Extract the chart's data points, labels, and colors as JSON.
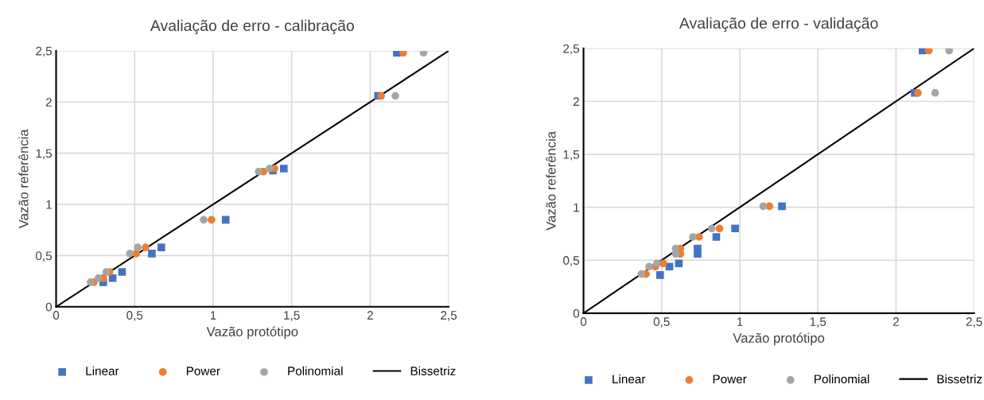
{
  "chart_data": [
    {
      "type": "scatter",
      "title": "Avaliação de erro - calibração",
      "xlabel": "Vazão protótipo",
      "ylabel": "Vazão referência",
      "xlim": [
        0,
        2.5
      ],
      "ylim": [
        0,
        2.5
      ],
      "xticks": [
        0,
        {
          "value": 0.5,
          "label": "0,5"
        },
        1,
        {
          "value": 1.5,
          "label": "1,5"
        },
        2,
        {
          "value": 2.5,
          "label": "2,5"
        }
      ],
      "yticks": [
        0,
        {
          "value": 0.5,
          "label": "0,5"
        },
        1,
        {
          "value": 1.5,
          "label": "1,5"
        },
        2,
        {
          "value": 2.5,
          "label": "2,5"
        }
      ],
      "grid": true,
      "legend": "bottom",
      "series": [
        {
          "name": "Linear",
          "marker": "square",
          "color": "#4472c4",
          "x": [
            0.3,
            0.36,
            0.42,
            0.61,
            0.67,
            1.08,
            1.38,
            1.45,
            2.05,
            2.17
          ],
          "values": [
            0.24,
            0.28,
            0.34,
            0.52,
            0.58,
            0.85,
            1.33,
            1.35,
            2.06,
            2.48
          ]
        },
        {
          "name": "Power",
          "marker": "circle",
          "color": "#ed7d31",
          "x": [
            0.24,
            0.3,
            0.34,
            0.51,
            0.57,
            0.99,
            1.32,
            1.39,
            2.07,
            2.21
          ],
          "values": [
            0.24,
            0.28,
            0.34,
            0.52,
            0.58,
            0.85,
            1.32,
            1.35,
            2.06,
            2.48
          ]
        },
        {
          "name": "Polinomial",
          "marker": "circle",
          "color": "#a5a5a5",
          "x": [
            0.22,
            0.27,
            0.32,
            0.47,
            0.52,
            0.94,
            1.29,
            1.36,
            2.16,
            2.34
          ],
          "values": [
            0.24,
            0.28,
            0.34,
            0.52,
            0.58,
            0.85,
            1.32,
            1.35,
            2.06,
            2.48
          ]
        },
        {
          "name": "Bissetriz",
          "type": "line",
          "marker": "none",
          "line_style": "solid",
          "color": "#000000",
          "x": [
            0,
            2.5
          ],
          "values": [
            0,
            2.5
          ]
        }
      ]
    },
    {
      "type": "scatter",
      "title": "Avaliação de erro - validação",
      "xlabel": "Vazão protótipo",
      "ylabel": "Vazão referência",
      "xlim": [
        0,
        2.5
      ],
      "ylim": [
        0,
        2.5
      ],
      "xticks": [
        0,
        {
          "value": 0.5,
          "label": "0,5"
        },
        1,
        {
          "value": 1.5,
          "label": "1,5"
        },
        2,
        {
          "value": 2.5,
          "label": "2,5"
        }
      ],
      "yticks": [
        0,
        {
          "value": 0.5,
          "label": "0,5"
        },
        1,
        {
          "value": 1.5,
          "label": "1,5"
        },
        2,
        {
          "value": 2.5,
          "label": "2,5"
        }
      ],
      "grid": true,
      "legend": "bottom",
      "series": [
        {
          "name": "Linear",
          "marker": "square",
          "color": "#4472c4",
          "x": [
            0.49,
            0.55,
            0.61,
            0.73,
            0.73,
            0.85,
            0.97,
            1.27,
            2.12,
            2.17
          ],
          "values": [
            0.36,
            0.44,
            0.47,
            0.56,
            0.61,
            0.72,
            0.8,
            1.01,
            2.08,
            2.48
          ]
        },
        {
          "name": "Power",
          "marker": "circle",
          "color": "#ed7d31",
          "x": [
            0.4,
            0.46,
            0.51,
            0.62,
            0.62,
            0.74,
            0.87,
            1.19,
            2.14,
            2.21
          ],
          "values": [
            0.37,
            0.44,
            0.47,
            0.56,
            0.61,
            0.72,
            0.8,
            1.01,
            2.08,
            2.48
          ]
        },
        {
          "name": "Polinomial",
          "marker": "circle",
          "color": "#a5a5a5",
          "x": [
            0.37,
            0.42,
            0.47,
            0.59,
            0.59,
            0.7,
            0.82,
            1.15,
            2.25,
            2.34
          ],
          "values": [
            0.37,
            0.44,
            0.47,
            0.56,
            0.61,
            0.72,
            0.8,
            1.01,
            2.08,
            2.48
          ]
        },
        {
          "name": "Bissetriz",
          "type": "line",
          "marker": "none",
          "line_style": "solid",
          "color": "#000000",
          "x": [
            0,
            2.5
          ],
          "values": [
            0,
            2.5
          ]
        }
      ]
    }
  ]
}
